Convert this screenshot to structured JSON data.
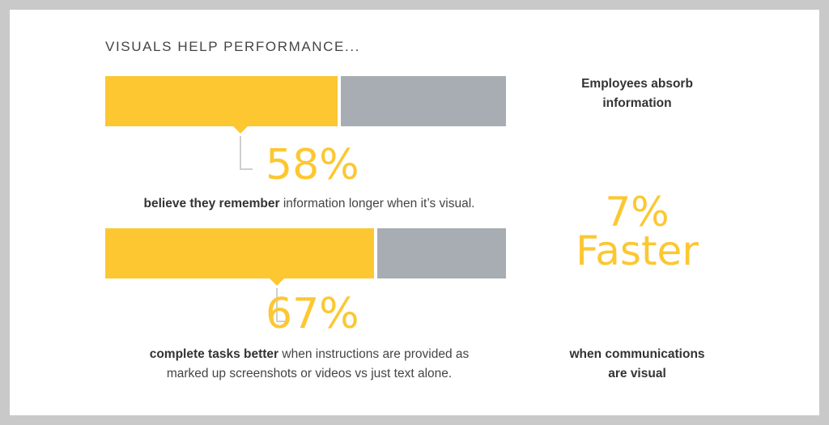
{
  "title": "VISUALS HELP PERFORMANCE...",
  "colors": {
    "accent": "#fcc731",
    "remainder": "#a7adb2",
    "text": "#444444",
    "leader": "#cfcfcf"
  },
  "chart_data": {
    "type": "bar",
    "orientation": "horizontal-stacked",
    "title": "VISUALS HELP PERFORMANCE...",
    "categories": [
      "believe they remember information longer when it’s visual.",
      "complete tasks better when instructions are provided as marked up screenshots or videos vs just text alone."
    ],
    "values": [
      58,
      67
    ],
    "value_labels": [
      "58%",
      "67%"
    ],
    "xlim": [
      0,
      100
    ],
    "grid": false,
    "legend": "none"
  },
  "stat1": {
    "value_label": "58%",
    "caption_bold": "believe they remember",
    "caption_rest": " information longer when it’s visual."
  },
  "stat2": {
    "value_label": "67%",
    "caption_bold": "complete tasks better",
    "caption_rest": " when instructions are provided as",
    "caption_line2": "marked up screenshots or videos vs just text alone."
  },
  "side": {
    "top_line1": "Employees absorb",
    "top_line2": "information",
    "big_value": "7%",
    "big_word": "Faster",
    "bottom_line1": "when communications",
    "bottom_line2": "are visual"
  }
}
